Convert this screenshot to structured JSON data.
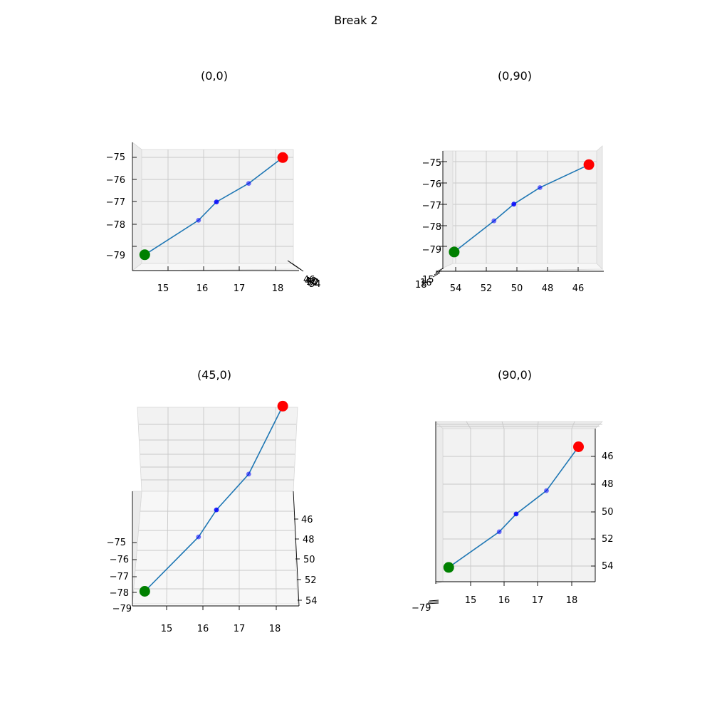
{
  "suptitle": "Break 2",
  "colors": {
    "path_line": "#1f77b4",
    "start_point": "#008000",
    "end_point": "#ff0000",
    "mid_points": "#0000ff",
    "pane_back": "#f2f2f2",
    "pane_side": "#ebebeb",
    "pane_floor": "#f7f7f7",
    "grid": "#c8c8c8"
  },
  "chart_data": [
    {
      "type": "line",
      "title": "(0,0)",
      "view": {
        "elev": 0,
        "azim": 0
      },
      "x_ticks": [
        "15",
        "16",
        "17",
        "18"
      ],
      "y_ticks": [
        "46",
        "48",
        "50",
        "52",
        "54"
      ],
      "z_ticks": [
        "−75",
        "−76",
        "−77",
        "−78",
        "−79"
      ],
      "path": {
        "x": [
          14.35,
          15.85,
          16.35,
          17.25,
          18.2
        ],
        "y": [
          54.1,
          51.5,
          50.2,
          48.5,
          45.3
        ],
        "z": [
          -79.3,
          -77.8,
          -77.0,
          -76.2,
          -75.1
        ]
      },
      "start": {
        "x": 14.35,
        "y": 54.1,
        "z": -79.3
      },
      "end": {
        "x": 18.2,
        "y": 45.3,
        "z": -75.1
      }
    },
    {
      "type": "line",
      "title": "(0,90)",
      "view": {
        "elev": 0,
        "azim": 90
      },
      "x_ticks": [
        "15",
        "16",
        "18"
      ],
      "y_ticks": [
        "54",
        "52",
        "50",
        "48",
        "46"
      ],
      "z_ticks": [
        "−75",
        "−76",
        "−77",
        "−78",
        "−79"
      ],
      "path": {
        "x": [
          14.35,
          15.85,
          16.35,
          17.25,
          18.2
        ],
        "y": [
          54.1,
          51.5,
          50.2,
          48.5,
          45.3
        ],
        "z": [
          -79.3,
          -77.8,
          -77.0,
          -76.2,
          -75.1
        ]
      },
      "start": {
        "x": 14.35,
        "y": 54.1,
        "z": -79.3
      },
      "end": {
        "x": 18.2,
        "y": 45.3,
        "z": -75.1
      }
    },
    {
      "type": "line",
      "title": "(45,0)",
      "view": {
        "elev": 45,
        "azim": 0
      },
      "x_ticks": [
        "15",
        "16",
        "17",
        "18"
      ],
      "y_ticks": [
        "46",
        "48",
        "50",
        "52",
        "54"
      ],
      "z_ticks": [
        "−75",
        "−76",
        "−77",
        "−78",
        "−79"
      ],
      "path": {
        "x": [
          14.35,
          15.85,
          16.35,
          17.25,
          18.2
        ],
        "y": [
          54.1,
          51.5,
          50.2,
          48.5,
          45.3
        ],
        "z": [
          -79.3,
          -77.8,
          -77.0,
          -76.2,
          -75.1
        ]
      },
      "start": {
        "x": 14.35,
        "y": 54.1,
        "z": -79.3
      },
      "end": {
        "x": 18.2,
        "y": 45.3,
        "z": -75.1
      }
    },
    {
      "type": "line",
      "title": "(90,0)",
      "view": {
        "elev": 90,
        "azim": 0
      },
      "x_ticks": [
        "15",
        "16",
        "17",
        "18"
      ],
      "y_ticks": [
        "46",
        "48",
        "50",
        "52",
        "54"
      ],
      "z_ticks": [
        "−79"
      ],
      "path": {
        "x": [
          14.35,
          15.85,
          16.35,
          17.25,
          18.2
        ],
        "y": [
          54.1,
          51.5,
          50.2,
          48.5,
          45.3
        ],
        "z": [
          -79.3,
          -77.8,
          -77.0,
          -76.2,
          -75.1
        ]
      },
      "start": {
        "x": 14.35,
        "y": 54.1,
        "z": -79.3
      },
      "end": {
        "x": 18.2,
        "y": 45.3,
        "z": -75.1
      }
    }
  ]
}
